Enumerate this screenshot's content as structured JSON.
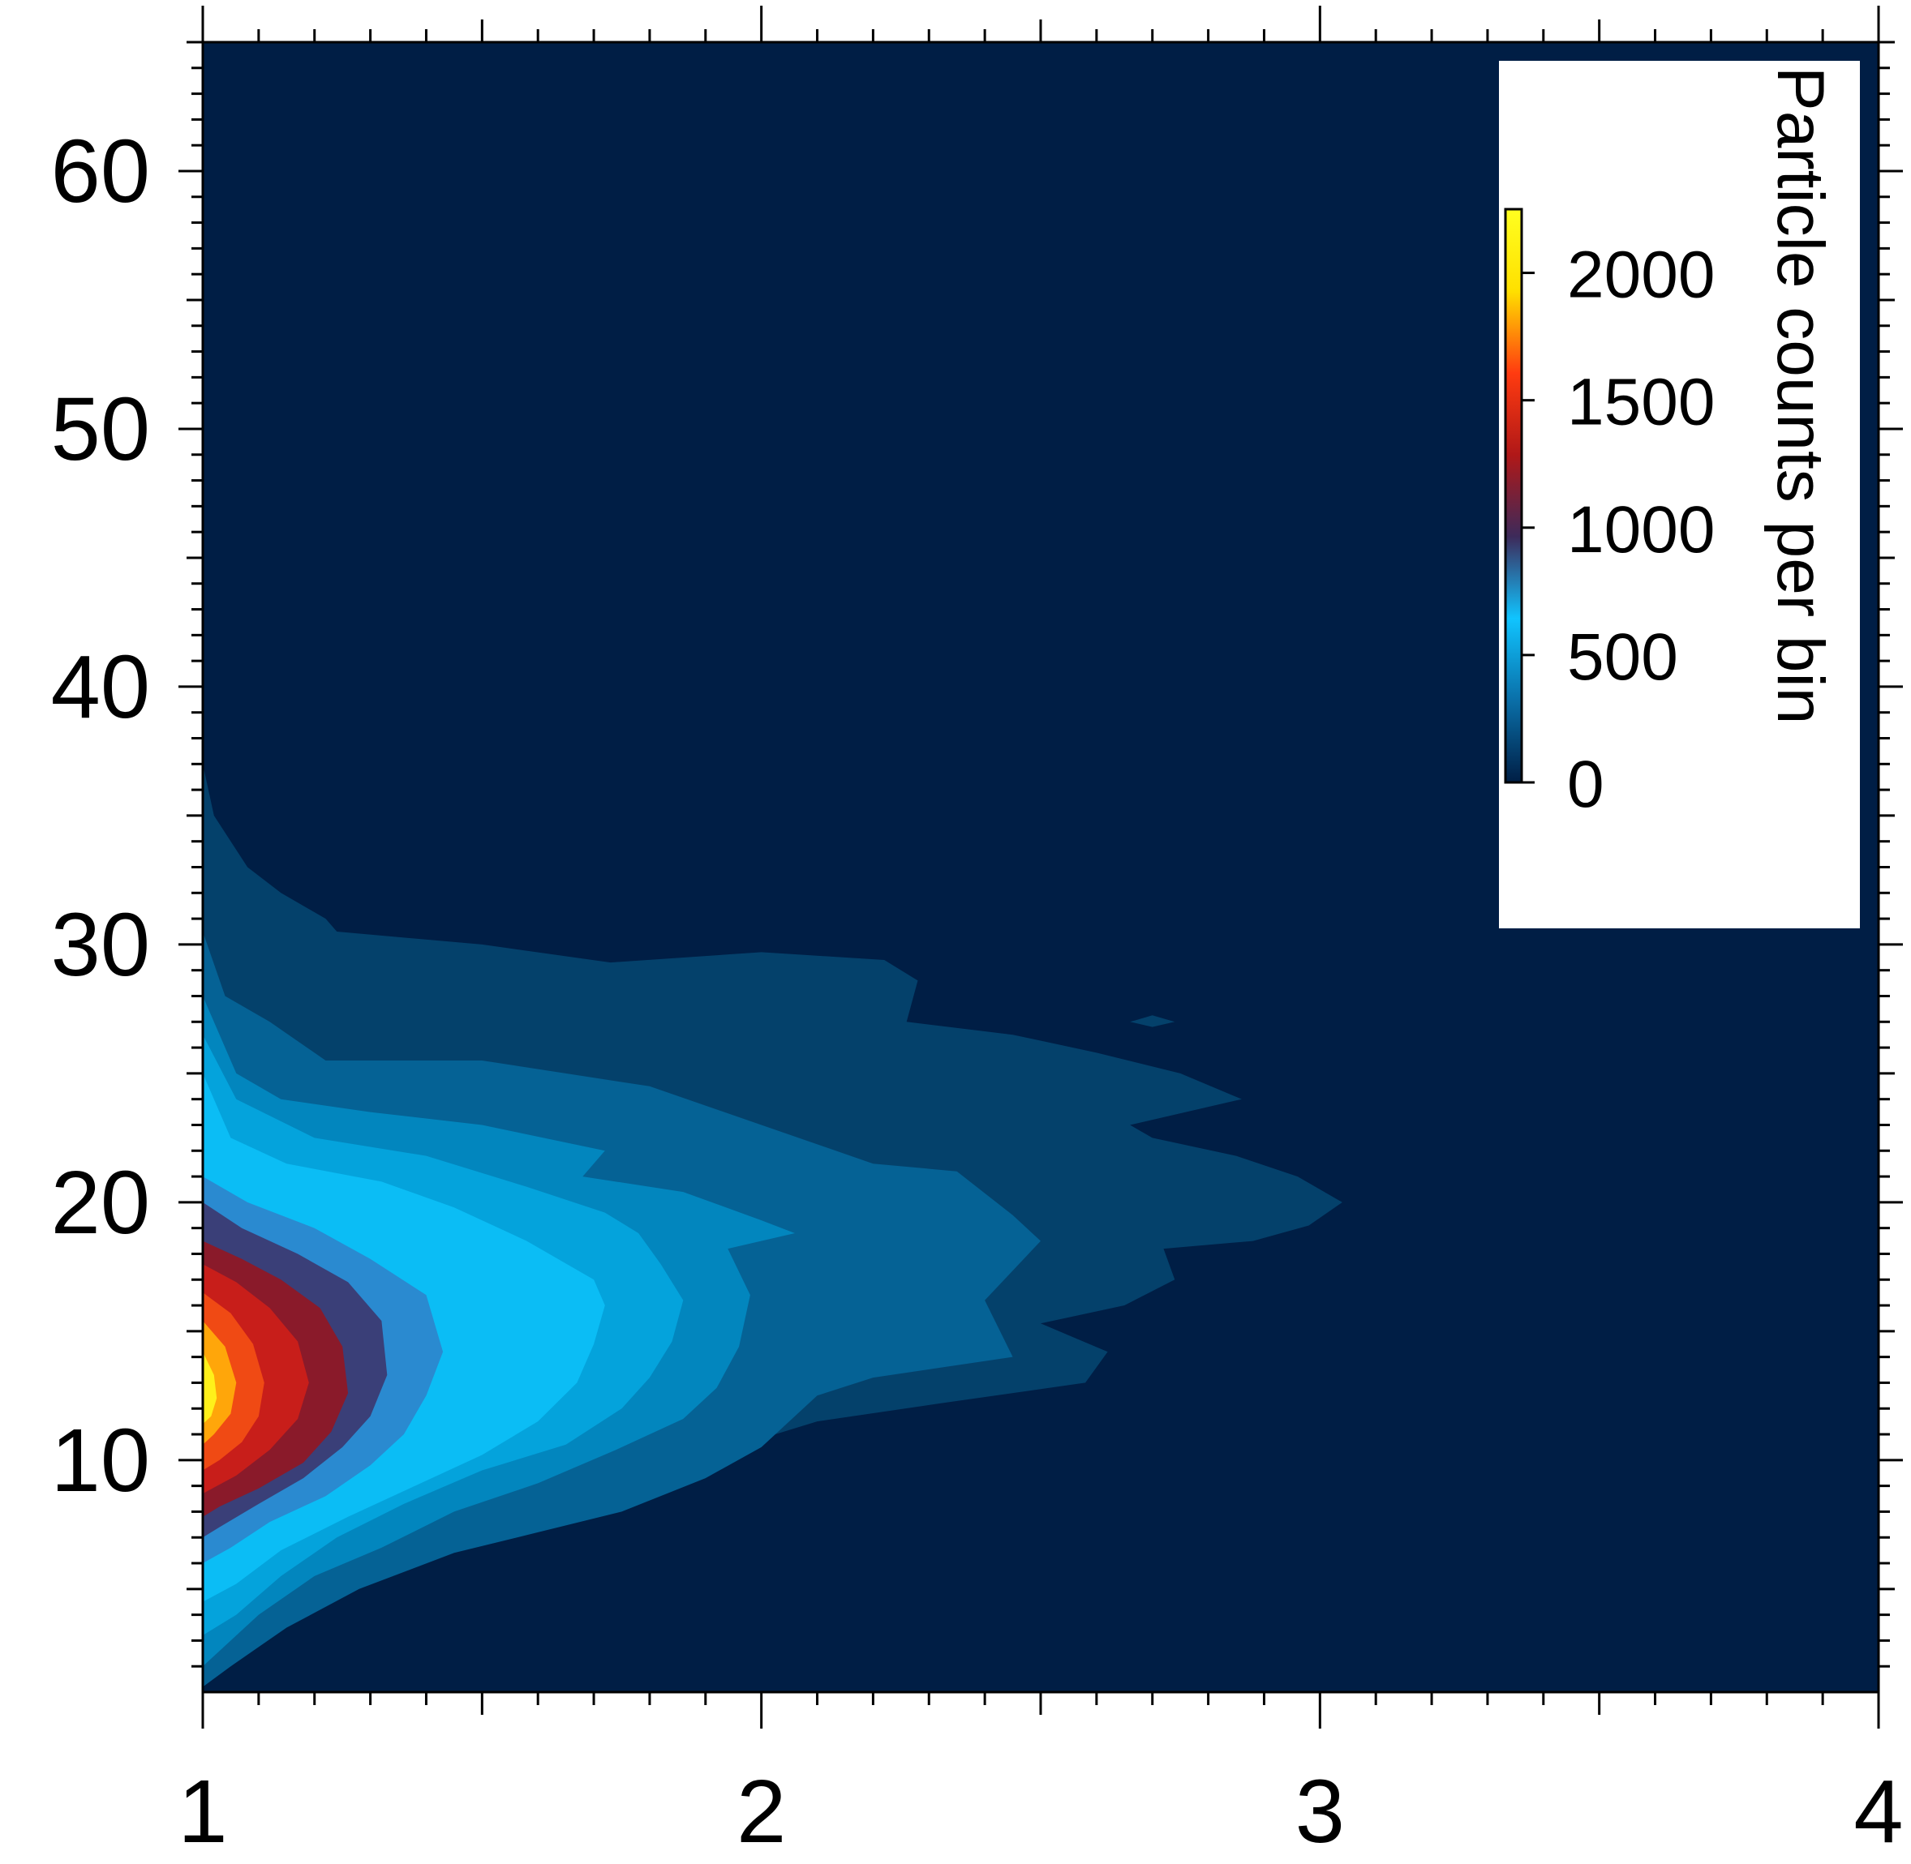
{
  "chart_data": {
    "type": "heatmap",
    "subtype": "filled-contour",
    "title": "",
    "xlabel": "",
    "ylabel": "",
    "xlim": [
      1,
      4
    ],
    "ylim": [
      1,
      65
    ],
    "x_ticks": [
      "1",
      "2",
      "3",
      "4"
    ],
    "y_ticks": [
      "10",
      "20",
      "30",
      "40",
      "50",
      "60"
    ],
    "colorbar": {
      "label": "Particle counts per bin",
      "range": [
        0,
        2250
      ],
      "ticks": [
        "0",
        "500",
        "1000",
        "1500",
        "2000"
      ],
      "colormap": [
        "#001e45",
        "#0a6fa8",
        "#10c4ff",
        "#3d2a5a",
        "#b01818",
        "#ff3b10",
        "#ffe000",
        "#ffff20"
      ]
    },
    "background_level": 0,
    "contours": [
      {
        "level": 100,
        "color": "#04416b",
        "outline": [
          [
            1.0,
            37
          ],
          [
            1.02,
            35
          ],
          [
            1.08,
            33
          ],
          [
            1.14,
            32
          ],
          [
            1.22,
            31
          ],
          [
            1.24,
            30.5
          ],
          [
            1.5,
            30
          ],
          [
            1.73,
            29.3
          ],
          [
            2.0,
            29.7
          ],
          [
            2.22,
            29.4
          ],
          [
            2.28,
            28.6
          ],
          [
            2.26,
            27
          ],
          [
            2.45,
            26.5
          ],
          [
            2.6,
            25.8
          ],
          [
            2.75,
            25
          ],
          [
            2.86,
            24
          ],
          [
            2.66,
            23
          ],
          [
            2.7,
            22.5
          ],
          [
            2.85,
            21.8
          ],
          [
            2.96,
            21
          ],
          [
            3.04,
            20.0
          ],
          [
            2.98,
            19.1
          ],
          [
            2.88,
            18.5
          ],
          [
            2.72,
            18.2
          ],
          [
            2.74,
            17
          ],
          [
            2.65,
            16
          ],
          [
            2.5,
            15.3
          ],
          [
            2.62,
            14.2
          ],
          [
            2.58,
            13.0
          ],
          [
            2.32,
            12.2
          ],
          [
            2.1,
            11.5
          ],
          [
            1.95,
            10.5
          ],
          [
            1.82,
            9.2
          ],
          [
            1.65,
            8.2
          ],
          [
            1.5,
            6.8
          ],
          [
            1.2,
            4.5
          ],
          [
            1.05,
            2
          ],
          [
            1.0,
            1.6
          ]
        ]
      },
      {
        "level": 200,
        "color": "#056295",
        "outline": [
          [
            1.0,
            30.5
          ],
          [
            1.04,
            28
          ],
          [
            1.12,
            27
          ],
          [
            1.22,
            25.5
          ],
          [
            1.5,
            25.5
          ],
          [
            1.8,
            24.5
          ],
          [
            2.0,
            23
          ],
          [
            2.2,
            21.5
          ],
          [
            2.35,
            21.2
          ],
          [
            2.45,
            19.5
          ],
          [
            2.5,
            18.5
          ],
          [
            2.4,
            16.2
          ],
          [
            2.45,
            14.0
          ],
          [
            2.2,
            13.2
          ],
          [
            2.1,
            12.5
          ],
          [
            2.0,
            10.5
          ],
          [
            1.9,
            9.3
          ],
          [
            1.75,
            8
          ],
          [
            1.6,
            7.2
          ],
          [
            1.45,
            6.4
          ],
          [
            1.28,
            5.0
          ],
          [
            1.15,
            3.5
          ],
          [
            1.05,
            2.0
          ],
          [
            1.0,
            1.2
          ]
        ]
      },
      {
        "level": 300,
        "color": "#0286be",
        "outline": [
          [
            1.0,
            28
          ],
          [
            1.06,
            25
          ],
          [
            1.14,
            24
          ],
          [
            1.3,
            23.5
          ],
          [
            1.5,
            23
          ],
          [
            1.72,
            22
          ],
          [
            1.68,
            21
          ],
          [
            1.86,
            20.4
          ],
          [
            2.0,
            19.3
          ],
          [
            2.06,
            18.8
          ],
          [
            1.94,
            18.2
          ],
          [
            1.98,
            16.4
          ],
          [
            1.96,
            14.4
          ],
          [
            1.92,
            12.8
          ],
          [
            1.86,
            11.6
          ],
          [
            1.74,
            10.4
          ],
          [
            1.6,
            9.1
          ],
          [
            1.45,
            8
          ],
          [
            1.32,
            6.6
          ],
          [
            1.2,
            5.5
          ],
          [
            1.1,
            4.0
          ],
          [
            1.03,
            2.6
          ],
          [
            1.0,
            2.0
          ]
        ]
      },
      {
        "level": 400,
        "color": "#04a3dc",
        "outline": [
          [
            1.0,
            26.5
          ],
          [
            1.06,
            24
          ],
          [
            1.2,
            22.5
          ],
          [
            1.4,
            21.8
          ],
          [
            1.58,
            20.6
          ],
          [
            1.72,
            19.6
          ],
          [
            1.78,
            18.8
          ],
          [
            1.82,
            17.6
          ],
          [
            1.86,
            16.2
          ],
          [
            1.84,
            14.6
          ],
          [
            1.8,
            13.2
          ],
          [
            1.75,
            12
          ],
          [
            1.65,
            10.6
          ],
          [
            1.5,
            9.6
          ],
          [
            1.36,
            8.3
          ],
          [
            1.24,
            7
          ],
          [
            1.14,
            5.5
          ],
          [
            1.06,
            4
          ],
          [
            1.0,
            3.2
          ]
        ]
      },
      {
        "level": 500,
        "color": "#0bbdf5",
        "outline": [
          [
            1.0,
            25
          ],
          [
            1.05,
            22.5
          ],
          [
            1.15,
            21.5
          ],
          [
            1.32,
            20.8
          ],
          [
            1.45,
            19.8
          ],
          [
            1.58,
            18.5
          ],
          [
            1.7,
            17
          ],
          [
            1.72,
            16
          ],
          [
            1.7,
            14.5
          ],
          [
            1.67,
            13
          ],
          [
            1.6,
            11.5
          ],
          [
            1.5,
            10.2
          ],
          [
            1.38,
            9.0
          ],
          [
            1.26,
            7.8
          ],
          [
            1.14,
            6.5
          ],
          [
            1.06,
            5.2
          ],
          [
            1.0,
            4.5
          ]
        ]
      },
      {
        "level": 700,
        "color": "#2a8ad0",
        "outline": [
          [
            1.0,
            21
          ],
          [
            1.08,
            20
          ],
          [
            1.2,
            19
          ],
          [
            1.3,
            17.8
          ],
          [
            1.4,
            16.4
          ],
          [
            1.43,
            14.2
          ],
          [
            1.4,
            12.5
          ],
          [
            1.36,
            11
          ],
          [
            1.3,
            9.8
          ],
          [
            1.22,
            8.6
          ],
          [
            1.12,
            7.6
          ],
          [
            1.05,
            6.6
          ],
          [
            1.0,
            6.0
          ]
        ]
      },
      {
        "level": 900,
        "color": "#3a3f78",
        "outline": [
          [
            1.0,
            20
          ],
          [
            1.07,
            19
          ],
          [
            1.17,
            18
          ],
          [
            1.26,
            16.9
          ],
          [
            1.32,
            15.4
          ],
          [
            1.33,
            13.3
          ],
          [
            1.3,
            11.7
          ],
          [
            1.25,
            10.5
          ],
          [
            1.18,
            9.3
          ],
          [
            1.1,
            8.3
          ],
          [
            1.03,
            7.4
          ],
          [
            1.0,
            7.0
          ]
        ]
      },
      {
        "level": 1100,
        "color": "#8a1a2a",
        "outline": [
          [
            1.0,
            18.5
          ],
          [
            1.07,
            17.8
          ],
          [
            1.14,
            17.0
          ],
          [
            1.21,
            15.9
          ],
          [
            1.25,
            14.4
          ],
          [
            1.26,
            12.6
          ],
          [
            1.23,
            11.1
          ],
          [
            1.18,
            9.9
          ],
          [
            1.1,
            8.9
          ],
          [
            1.03,
            8.2
          ],
          [
            1.0,
            7.8
          ]
        ]
      },
      {
        "level": 1400,
        "color": "#c81e1a",
        "outline": [
          [
            1.0,
            17.6
          ],
          [
            1.06,
            16.9
          ],
          [
            1.12,
            15.9
          ],
          [
            1.17,
            14.6
          ],
          [
            1.19,
            13.0
          ],
          [
            1.17,
            11.6
          ],
          [
            1.12,
            10.4
          ],
          [
            1.06,
            9.4
          ],
          [
            1.0,
            8.7
          ]
        ]
      },
      {
        "level": 1700,
        "color": "#f04a14",
        "outline": [
          [
            1.0,
            16.5
          ],
          [
            1.05,
            15.7
          ],
          [
            1.09,
            14.5
          ],
          [
            1.11,
            13.0
          ],
          [
            1.1,
            11.7
          ],
          [
            1.07,
            10.7
          ],
          [
            1.03,
            10.0
          ],
          [
            1.0,
            9.6
          ]
        ]
      },
      {
        "level": 1950,
        "color": "#ffa60a",
        "outline": [
          [
            1.0,
            15.4
          ],
          [
            1.04,
            14.4
          ],
          [
            1.06,
            13.0
          ],
          [
            1.05,
            11.8
          ],
          [
            1.02,
            11.0
          ],
          [
            1.0,
            10.6
          ]
        ]
      },
      {
        "level": 2150,
        "color": "#fff01a",
        "outline": [
          [
            1.0,
            14.2
          ],
          [
            1.02,
            13.3
          ],
          [
            1.025,
            12.4
          ],
          [
            1.015,
            11.7
          ],
          [
            1.0,
            11.4
          ]
        ]
      }
    ],
    "islands": [
      {
        "level": 100,
        "color": "#04416b",
        "outline": [
          [
            2.66,
            27.0
          ],
          [
            2.7,
            27.25
          ],
          [
            2.74,
            27.0
          ],
          [
            2.7,
            26.8
          ]
        ]
      }
    ]
  }
}
